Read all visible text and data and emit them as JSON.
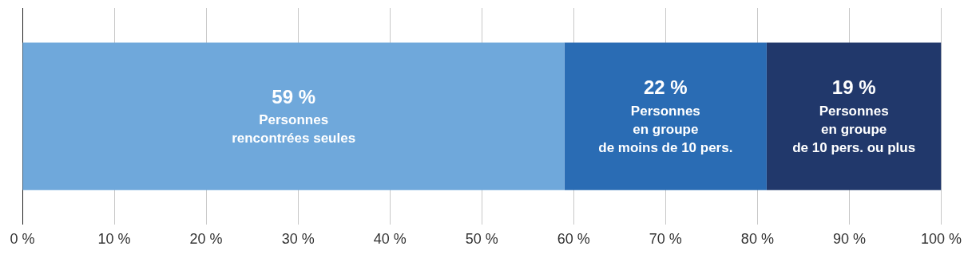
{
  "chart_data": {
    "type": "bar",
    "orientation": "horizontal",
    "stacked": true,
    "categories": [
      null
    ],
    "series": [
      {
        "name": "Personnes\nrencontrées seules",
        "color": "#6fa8db",
        "values": [
          59
        ],
        "value_labels": [
          "59 %"
        ]
      },
      {
        "name": "Personnes\nen groupe\nde moins de 10 pers.",
        "color": "#2a6cb4",
        "values": [
          22
        ],
        "value_labels": [
          "22 %"
        ]
      },
      {
        "name": "Personnes\nen groupe\nde 10 pers. ou plus",
        "color": "#21386b",
        "values": [
          19
        ],
        "value_labels": [
          "19 %"
        ]
      }
    ],
    "xlim": [
      0,
      100
    ],
    "xticks": [
      {
        "value": 0,
        "label": "0 %"
      },
      {
        "value": 10,
        "label": "10 %"
      },
      {
        "value": 20,
        "label": "20 %"
      },
      {
        "value": 30,
        "label": "30 %"
      },
      {
        "value": 40,
        "label": "40 %"
      },
      {
        "value": 50,
        "label": "50 %"
      },
      {
        "value": 60,
        "label": "60 %"
      },
      {
        "value": 70,
        "label": "70 %"
      },
      {
        "value": 80,
        "label": "80 %"
      },
      {
        "value": 90,
        "label": "90 %"
      },
      {
        "value": 100,
        "label": "100 %"
      }
    ],
    "grid": "x",
    "legend": false
  }
}
